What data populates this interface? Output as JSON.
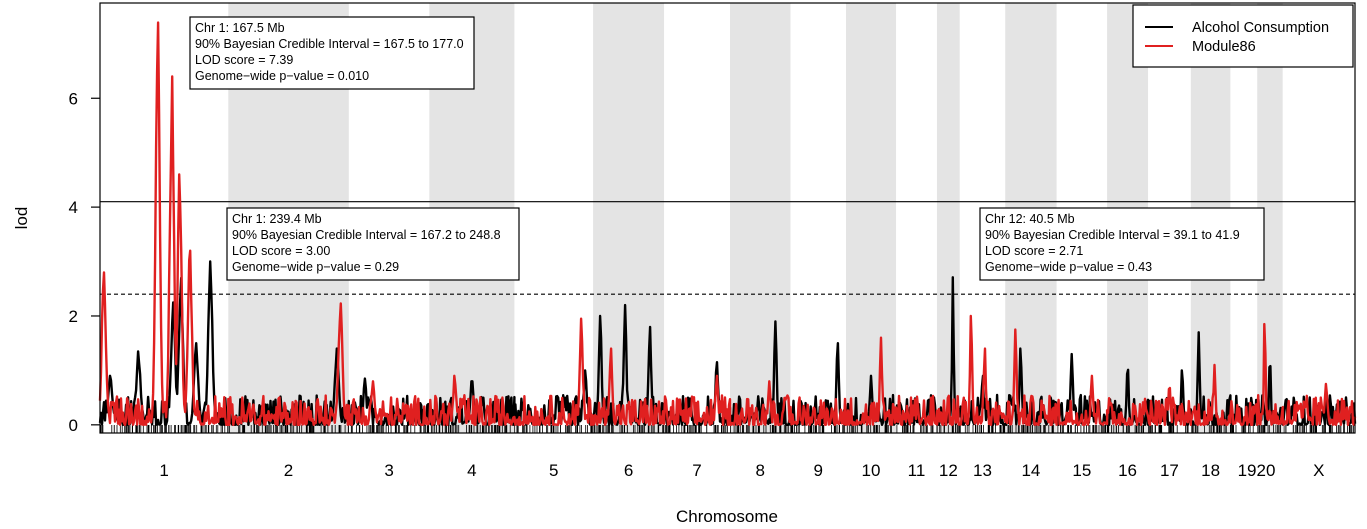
{
  "chart_data": {
    "type": "line",
    "xlabel": "Chromosome",
    "ylabel": "lod",
    "ylim": [
      -0.15,
      7.75
    ],
    "yticks": [
      0,
      2,
      4,
      6
    ],
    "grid": false,
    "legend_position": "top-right",
    "chromosomes": [
      "1",
      "2",
      "3",
      "4",
      "5",
      "6",
      "7",
      "8",
      "9",
      "10",
      "11",
      "12",
      "13",
      "14",
      "15",
      "16",
      "17",
      "18",
      "19",
      "20",
      "X"
    ],
    "chromosome_label_text": [
      "1",
      "2",
      "3",
      "4",
      "5",
      "6",
      "7",
      "8",
      "9",
      "10",
      "11",
      "12",
      "13",
      "14",
      "15",
      "16",
      "17",
      "18",
      "1920",
      "",
      "X"
    ],
    "chromosome_sizes_mb": [
      282,
      265,
      177,
      187,
      173,
      156,
      145,
      133,
      122,
      110,
      90,
      50,
      100,
      113,
      111,
      90,
      94,
      87,
      59,
      56,
      159
    ],
    "thresholds": [
      {
        "lod": 4.1,
        "style": "solid"
      },
      {
        "lod": 2.4,
        "style": "dashed"
      }
    ],
    "series": [
      {
        "name": "Alcohol Consumption",
        "color": "#000000",
        "peaks": [
          {
            "chr": "1",
            "pos": 0.08,
            "lod": 0.9
          },
          {
            "chr": "1",
            "pos": 0.3,
            "lod": 1.35
          },
          {
            "chr": "1",
            "pos": 0.57,
            "lod": 2.25
          },
          {
            "chr": "1",
            "pos": 0.63,
            "lod": 2.7
          },
          {
            "chr": "1",
            "pos": 0.75,
            "lod": 1.5
          },
          {
            "chr": "1",
            "pos": 0.86,
            "lod": 3.0
          },
          {
            "chr": "2",
            "pos": 0.9,
            "lod": 1.4
          },
          {
            "chr": "3",
            "pos": 0.2,
            "lod": 0.85
          },
          {
            "chr": "4",
            "pos": 0.5,
            "lod": 0.8
          },
          {
            "chr": "5",
            "pos": 0.9,
            "lod": 1.0
          },
          {
            "chr": "6",
            "pos": 0.1,
            "lod": 2.0
          },
          {
            "chr": "6",
            "pos": 0.45,
            "lod": 2.2
          },
          {
            "chr": "6",
            "pos": 0.8,
            "lod": 1.8
          },
          {
            "chr": "7",
            "pos": 0.8,
            "lod": 1.15
          },
          {
            "chr": "8",
            "pos": 0.75,
            "lod": 1.9
          },
          {
            "chr": "9",
            "pos": 0.85,
            "lod": 1.5
          },
          {
            "chr": "10",
            "pos": 0.5,
            "lod": 0.9
          },
          {
            "chr": "12",
            "pos": 0.7,
            "lod": 2.71
          },
          {
            "chr": "13",
            "pos": 0.5,
            "lod": 0.9
          },
          {
            "chr": "14",
            "pos": 0.3,
            "lod": 1.4
          },
          {
            "chr": "15",
            "pos": 0.3,
            "lod": 1.3
          },
          {
            "chr": "16",
            "pos": 0.5,
            "lod": 1.15
          },
          {
            "chr": "17",
            "pos": 0.8,
            "lod": 1.0
          },
          {
            "chr": "18",
            "pos": 0.2,
            "lod": 1.7
          },
          {
            "chr": "20",
            "pos": 0.5,
            "lod": 1.3
          },
          {
            "chr": "X",
            "pos": 0.8,
            "lod": 0.4
          }
        ]
      },
      {
        "name": "Module86",
        "color": "#e02020",
        "peaks": [
          {
            "chr": "1",
            "pos": 0.03,
            "lod": 2.8
          },
          {
            "chr": "1",
            "pos": 0.45,
            "lod": 7.39
          },
          {
            "chr": "1",
            "pos": 0.56,
            "lod": 6.4
          },
          {
            "chr": "1",
            "pos": 0.62,
            "lod": 4.6
          },
          {
            "chr": "1",
            "pos": 0.7,
            "lod": 3.2
          },
          {
            "chr": "2",
            "pos": 0.93,
            "lod": 2.23
          },
          {
            "chr": "3",
            "pos": 0.3,
            "lod": 0.8
          },
          {
            "chr": "4",
            "pos": 0.3,
            "lod": 0.9
          },
          {
            "chr": "5",
            "pos": 0.85,
            "lod": 1.95
          },
          {
            "chr": "6",
            "pos": 0.25,
            "lod": 1.4
          },
          {
            "chr": "7",
            "pos": 0.8,
            "lod": 0.9
          },
          {
            "chr": "8",
            "pos": 0.65,
            "lod": 0.8
          },
          {
            "chr": "10",
            "pos": 0.7,
            "lod": 1.6
          },
          {
            "chr": "13",
            "pos": 0.25,
            "lod": 2.0
          },
          {
            "chr": "13",
            "pos": 0.55,
            "lod": 1.4
          },
          {
            "chr": "14",
            "pos": 0.2,
            "lod": 1.75
          },
          {
            "chr": "15",
            "pos": 0.7,
            "lod": 0.9
          },
          {
            "chr": "17",
            "pos": 0.5,
            "lod": 0.8
          },
          {
            "chr": "18",
            "pos": 0.6,
            "lod": 1.1
          },
          {
            "chr": "20",
            "pos": 0.3,
            "lod": 1.85
          },
          {
            "chr": "X",
            "pos": 0.6,
            "lod": 0.75
          }
        ]
      }
    ],
    "annotations": [
      {
        "lines": [
          "Chr 1: 167.5 Mb",
          "90% Bayesian Credible Interval = 167.5 to 177.0",
          "LOD score = 7.39",
          "Genome−wide p−value = 0.010"
        ]
      },
      {
        "lines": [
          "Chr 1: 239.4 Mb",
          "90% Bayesian Credible Interval = 167.2 to 248.8",
          "LOD score = 3.00",
          "Genome−wide p−value = 0.29"
        ]
      },
      {
        "lines": [
          "Chr 12: 40.5 Mb",
          "90% Bayesian Credible Interval = 39.1 to 41.9",
          "LOD score = 2.71",
          "Genome−wide p−value = 0.43"
        ]
      }
    ]
  }
}
